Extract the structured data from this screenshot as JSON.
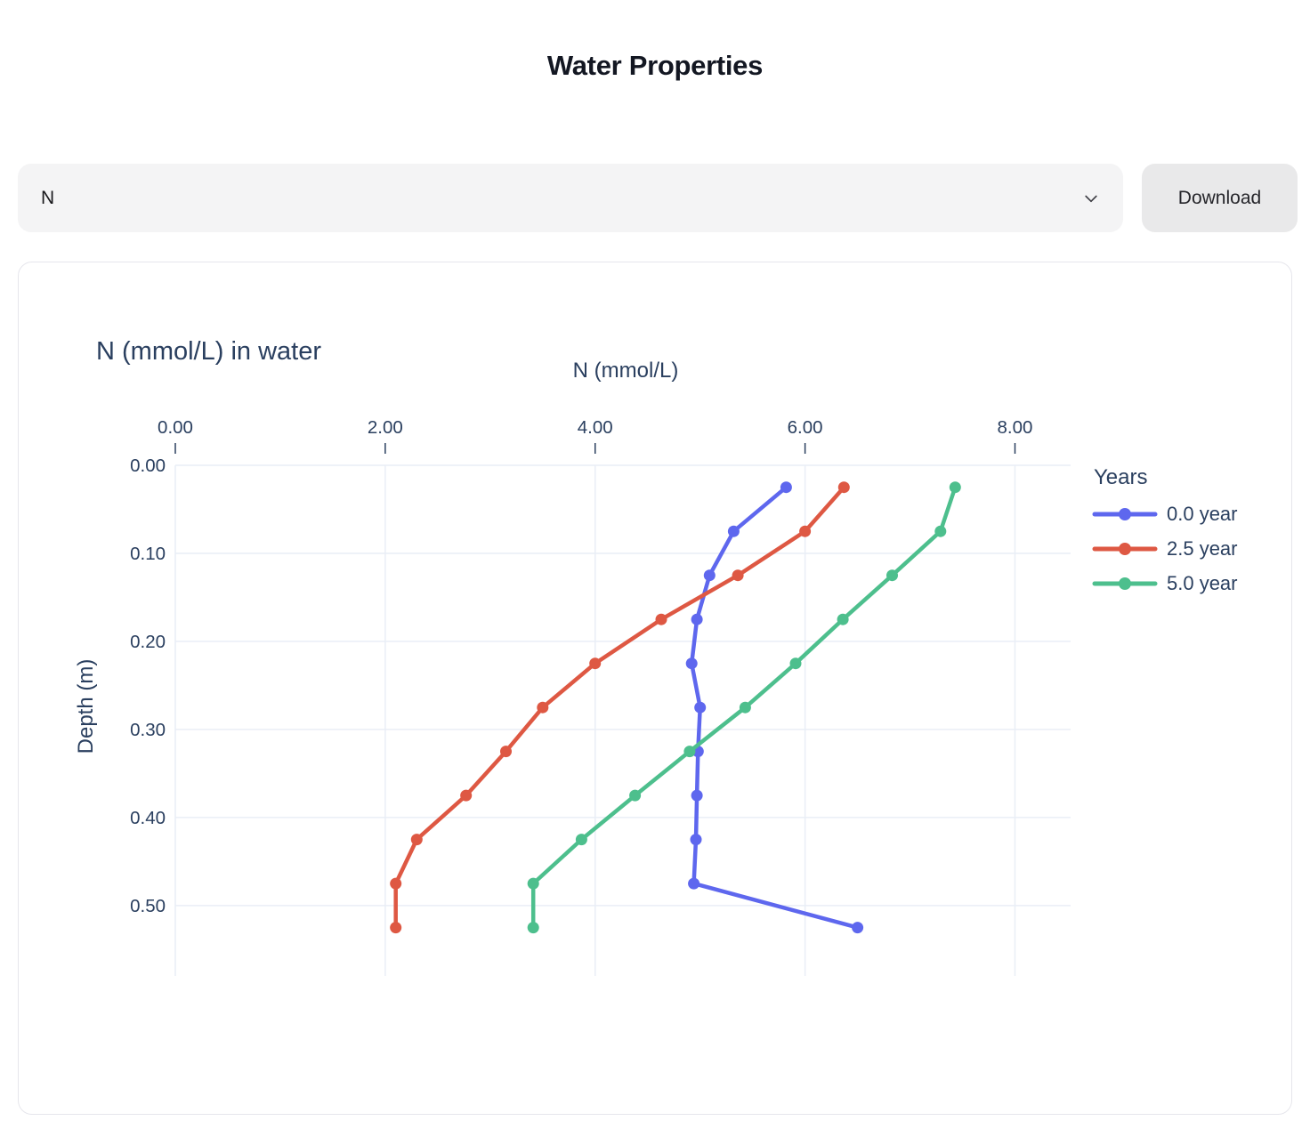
{
  "page": {
    "title": "Water Properties"
  },
  "controls": {
    "select_value": "N",
    "download_label": "Download"
  },
  "colors": {
    "chart_text": "#2a3f5f",
    "grid": "#e9eef6",
    "tick": "#2a3f5f",
    "series": [
      "#5e67ee",
      "#de5843",
      "#4dbf8d"
    ],
    "control_bg": "#f4f4f5",
    "button_bg": "#e9e9ea",
    "card_border": "#e6e6ec"
  },
  "chart_data": {
    "type": "line",
    "title": "N (mmol/L) in water",
    "xlabel": "N (mmol/L)",
    "ylabel": "Depth (m)",
    "legend_title": "Years",
    "legend_position": "right",
    "grid": true,
    "y_axis_reversed": true,
    "xlim": [
      0,
      8.53
    ],
    "ylim": [
      0,
      0.58
    ],
    "x_ticks": {
      "values": [
        0,
        2,
        4,
        6,
        8
      ],
      "labels": [
        "0.00",
        "2.00",
        "4.00",
        "6.00",
        "8.00"
      ]
    },
    "y_ticks": {
      "values": [
        0,
        0.1,
        0.2,
        0.3,
        0.4,
        0.5
      ],
      "labels": [
        "0.00",
        "0.10",
        "0.20",
        "0.30",
        "0.40",
        "0.50"
      ]
    },
    "depths_m": [
      0.025,
      0.075,
      0.125,
      0.175,
      0.225,
      0.275,
      0.325,
      0.375,
      0.425,
      0.475,
      0.525
    ],
    "series": [
      {
        "name": "0.0 year",
        "color": "#5e67ee",
        "values": [
          5.82,
          5.32,
          5.09,
          4.97,
          4.92,
          5.0,
          4.98,
          4.97,
          4.96,
          4.94,
          6.5
        ]
      },
      {
        "name": "2.5 year",
        "color": "#de5843",
        "values": [
          6.37,
          6.0,
          5.36,
          4.63,
          4.0,
          3.5,
          3.15,
          2.77,
          2.3,
          2.1,
          2.1
        ]
      },
      {
        "name": "5.0 year",
        "color": "#4dbf8d",
        "values": [
          7.43,
          7.29,
          6.83,
          6.36,
          5.91,
          5.43,
          4.9,
          4.38,
          3.87,
          3.41,
          3.41
        ]
      }
    ]
  }
}
